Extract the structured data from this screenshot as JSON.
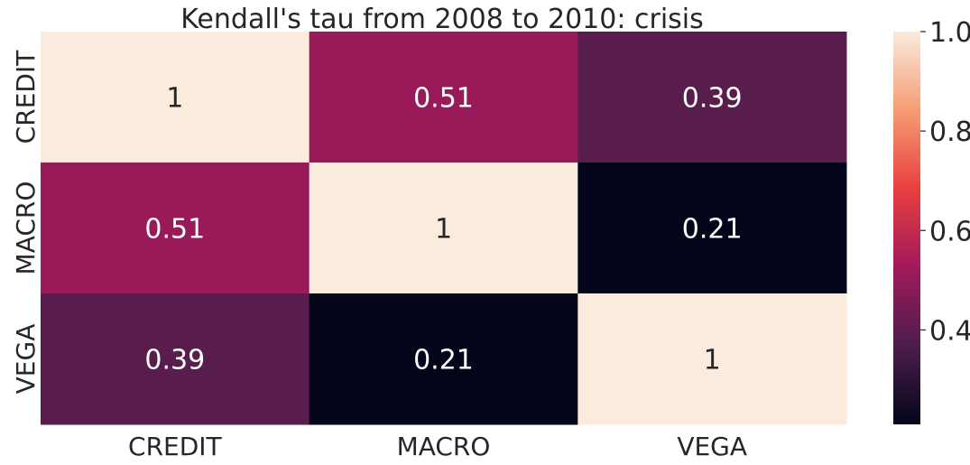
{
  "chart_data": {
    "type": "heatmap",
    "title": "Kendall's tau from 2008 to 2010: crisis",
    "rows": [
      "CREDIT",
      "MACRO",
      "VEGA"
    ],
    "columns": [
      "CREDIT",
      "MACRO",
      "VEGA"
    ],
    "values": [
      [
        1,
        0.51,
        0.39
      ],
      [
        0.51,
        1,
        0.21
      ],
      [
        0.39,
        0.21,
        1
      ]
    ],
    "annotations": [
      [
        "1",
        "0.51",
        "0.39"
      ],
      [
        "0.51",
        "1",
        "0.21"
      ],
      [
        "0.39",
        "0.21",
        "1"
      ]
    ],
    "colorbar": {
      "vmin": 0.21,
      "vmax": 1.0,
      "ticks": [
        0.4,
        0.6,
        0.8,
        1.0
      ],
      "tick_labels": [
        "0.4",
        "0.6",
        "0.8",
        "1.0"
      ],
      "colormap": "rocket",
      "colormap_stops": [
        "#03051a",
        "#4c1d4b",
        "#a11a5b",
        "#e83f3f",
        "#f69c73",
        "#faebdd"
      ]
    },
    "grid": false
  }
}
